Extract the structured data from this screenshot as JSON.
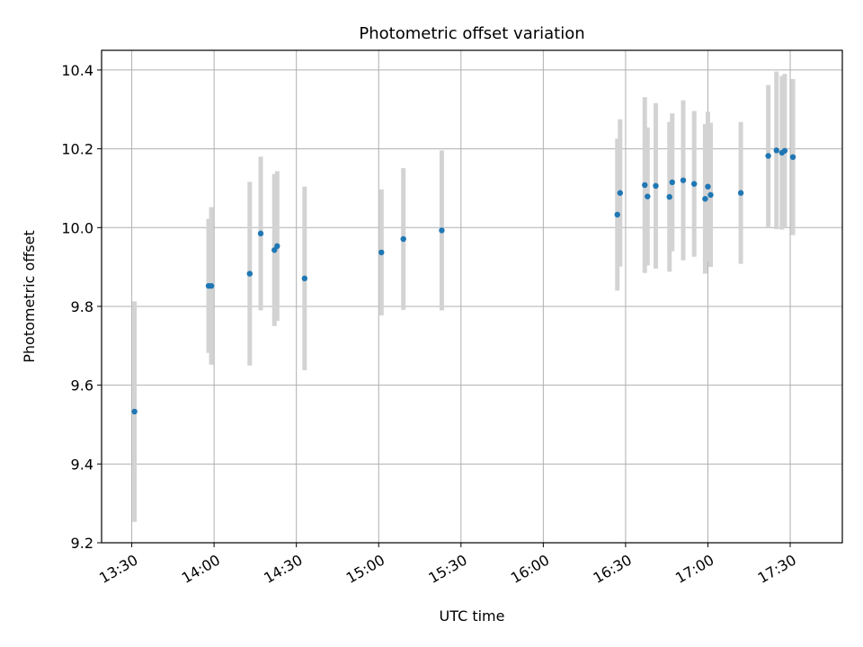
{
  "chart_data": {
    "type": "scatter",
    "title": "Photometric offset variation",
    "xlabel": "UTC time",
    "ylabel": "Photometric offset",
    "xlim": [
      "13:19",
      "17:49"
    ],
    "ylim": [
      9.2,
      10.45
    ],
    "grid": true,
    "colors": {
      "points": "#1f77b4",
      "errorbars": "#d3d3d3",
      "grid": "#b0b0b0",
      "axes": "#000000"
    },
    "x_ticks": [
      "13:30",
      "14:00",
      "14:30",
      "15:00",
      "15:30",
      "16:00",
      "16:30",
      "17:00",
      "17:30"
    ],
    "y_ticks": [
      "9.2",
      "9.4",
      "9.6",
      "9.8",
      "10.0",
      "10.2",
      "10.4"
    ],
    "series": [
      {
        "points": [
          {
            "x": "13:31",
            "y": 9.533,
            "err": 0.28
          },
          {
            "x": "13:58",
            "y": 9.852,
            "err": 0.17
          },
          {
            "x": "13:59",
            "y": 9.852,
            "err": 0.2
          },
          {
            "x": "14:13",
            "y": 9.883,
            "err": 0.233
          },
          {
            "x": "14:17",
            "y": 9.985,
            "err": 0.195
          },
          {
            "x": "14:22",
            "y": 9.943,
            "err": 0.193
          },
          {
            "x": "14:23",
            "y": 9.953,
            "err": 0.19
          },
          {
            "x": "14:33",
            "y": 9.871,
            "err": 0.233
          },
          {
            "x": "15:01",
            "y": 9.937,
            "err": 0.16
          },
          {
            "x": "15:09",
            "y": 9.971,
            "err": 0.18
          },
          {
            "x": "15:23",
            "y": 9.993,
            "err": 0.203
          },
          {
            "x": "16:27",
            "y": 10.033,
            "err": 0.193
          },
          {
            "x": "16:28",
            "y": 10.088,
            "err": 0.187
          },
          {
            "x": "16:37",
            "y": 10.108,
            "err": 0.223
          },
          {
            "x": "16:38",
            "y": 10.079,
            "err": 0.175
          },
          {
            "x": "16:41",
            "y": 10.106,
            "err": 0.21
          },
          {
            "x": "16:46",
            "y": 10.078,
            "err": 0.19
          },
          {
            "x": "16:47",
            "y": 10.115,
            "err": 0.175
          },
          {
            "x": "16:51",
            "y": 10.12,
            "err": 0.203
          },
          {
            "x": "16:55",
            "y": 10.111,
            "err": 0.185
          },
          {
            "x": "16:59",
            "y": 10.073,
            "err": 0.19
          },
          {
            "x": "17:00",
            "y": 10.104,
            "err": 0.19
          },
          {
            "x": "17:01",
            "y": 10.083,
            "err": 0.183
          },
          {
            "x": "17:12",
            "y": 10.088,
            "err": 0.18
          },
          {
            "x": "17:22",
            "y": 10.182,
            "err": 0.18
          },
          {
            "x": "17:25",
            "y": 10.196,
            "err": 0.2
          },
          {
            "x": "17:27",
            "y": 10.19,
            "err": 0.195
          },
          {
            "x": "17:28",
            "y": 10.195,
            "err": 0.195
          },
          {
            "x": "17:31",
            "y": 10.179,
            "err": 0.198
          }
        ]
      }
    ]
  }
}
